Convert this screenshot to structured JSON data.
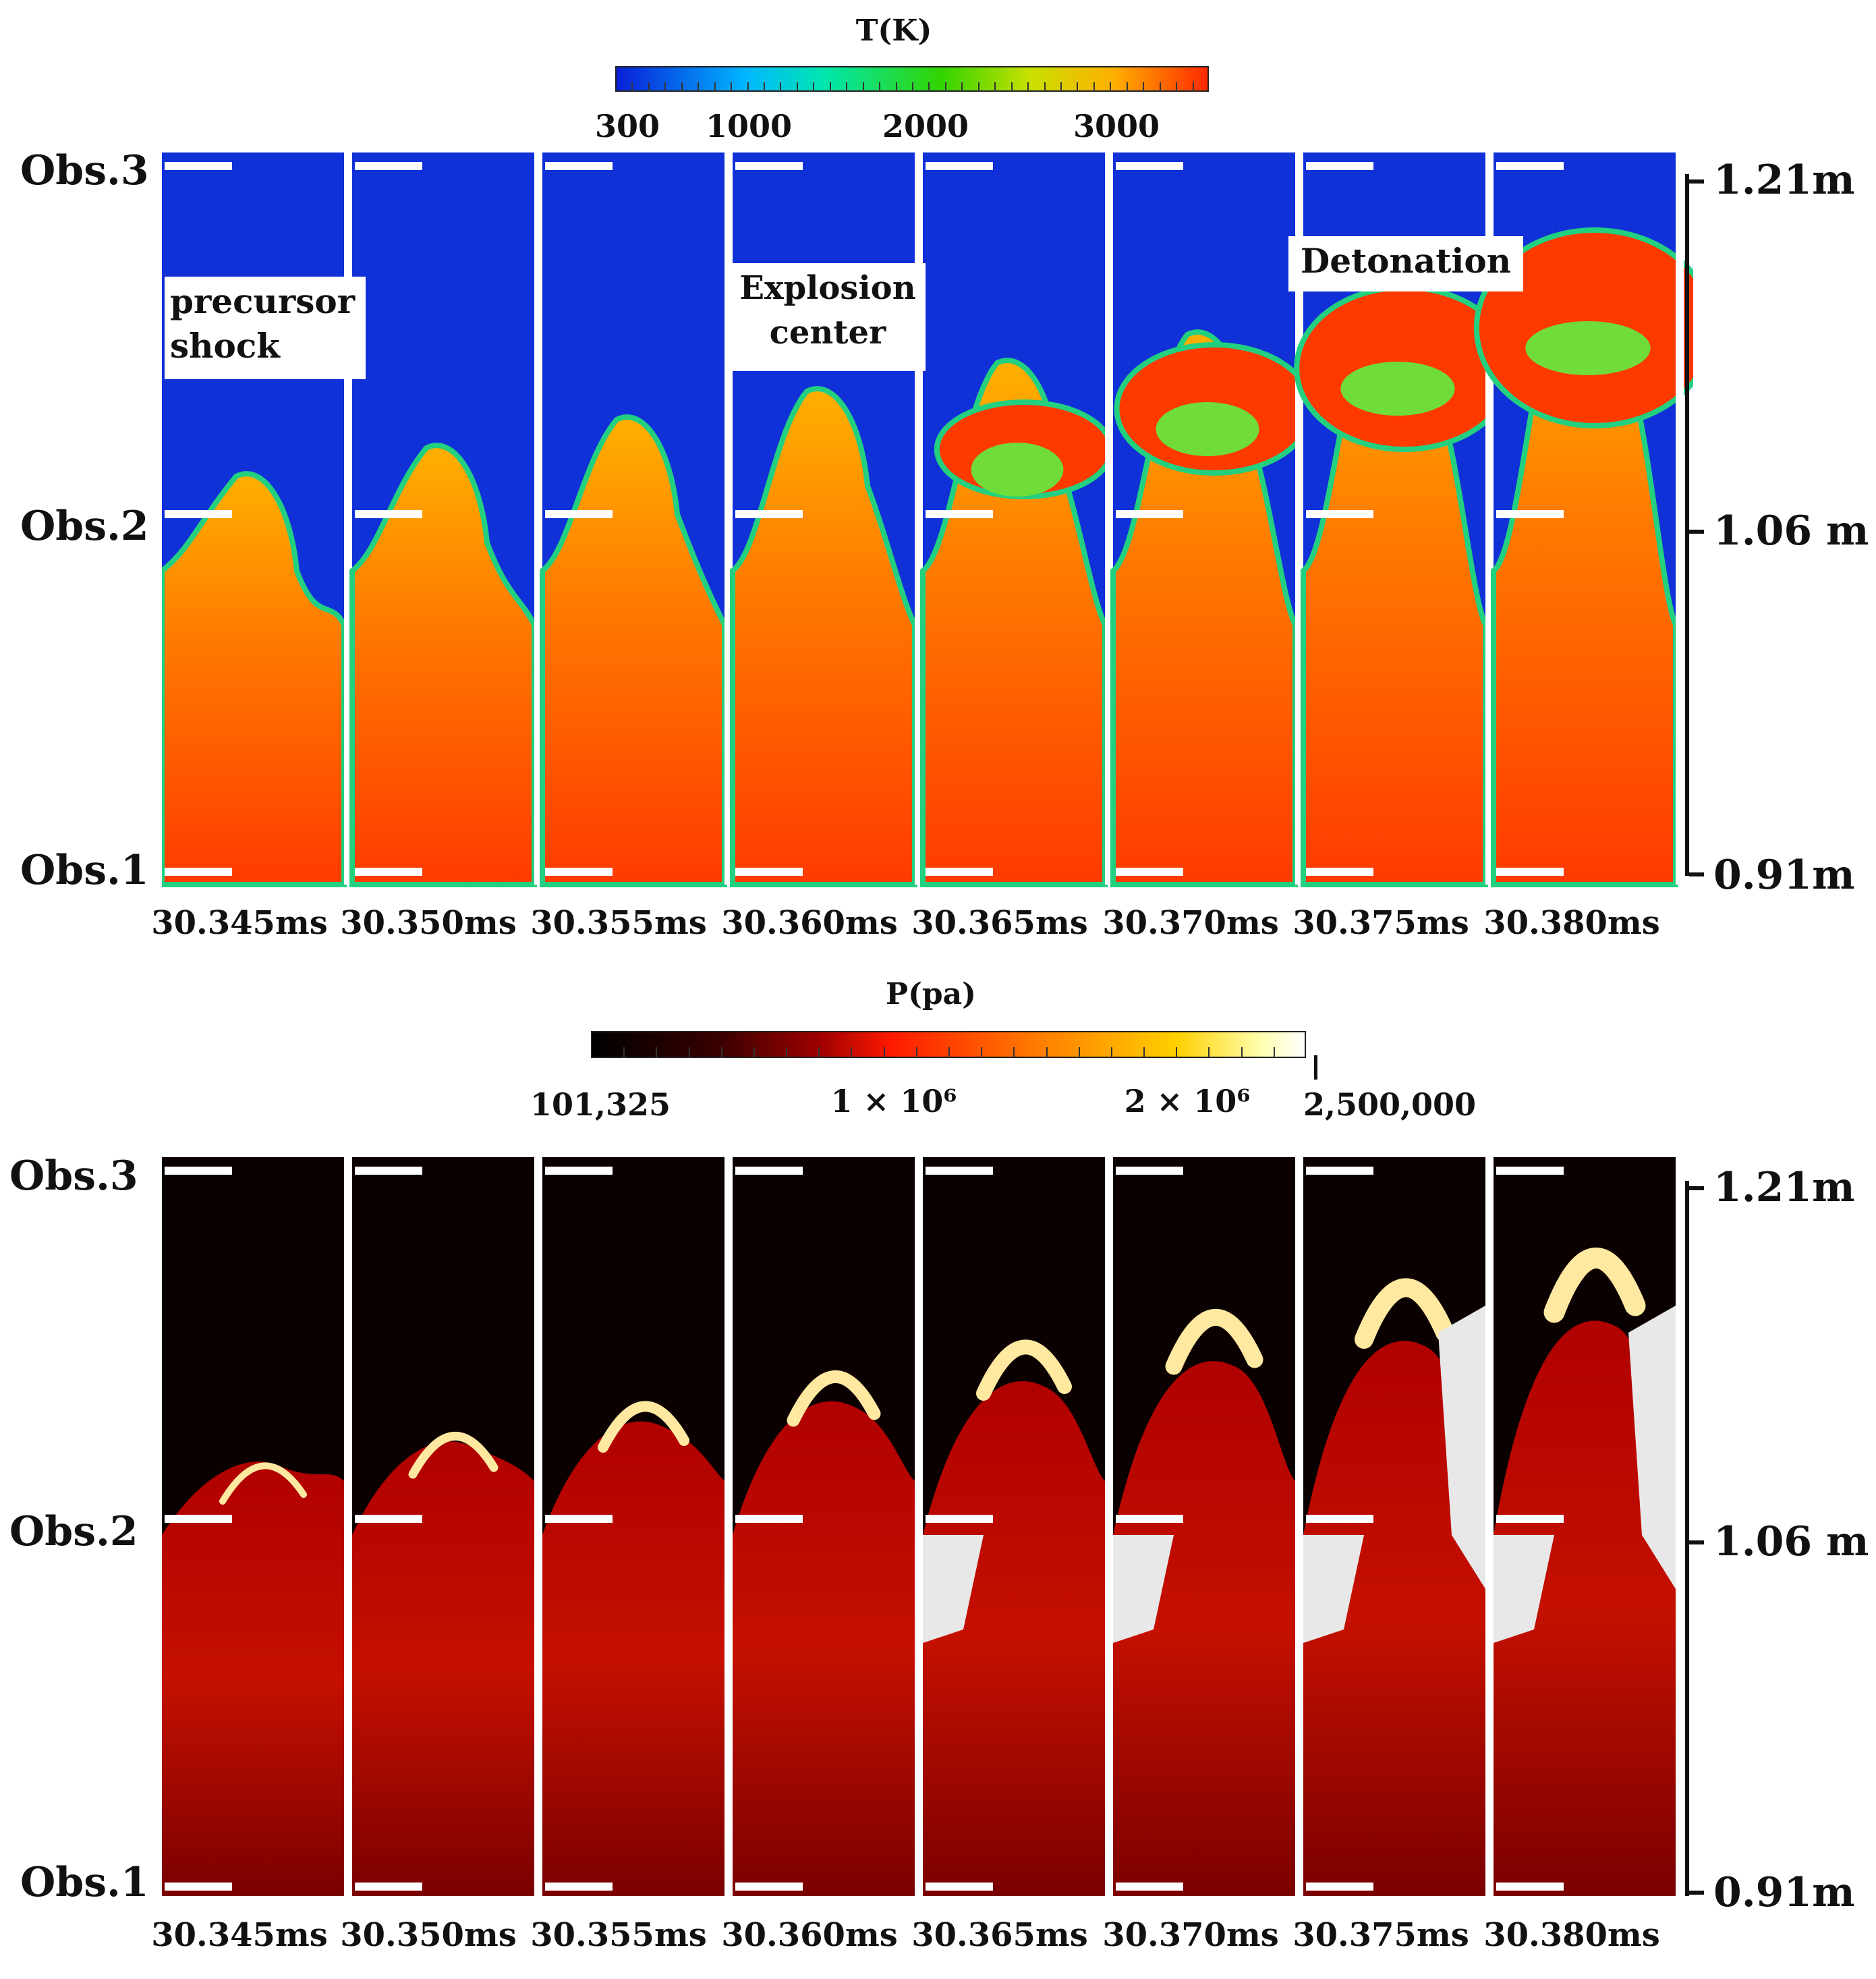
{
  "temperature_colorbar": {
    "title": "T(K)",
    "tick_labels": [
      "300",
      "1000",
      "2000",
      "3000"
    ],
    "gradient_colors": [
      "#0a1fd8",
      "#00b7ff",
      "#00e6b0",
      "#33d400",
      "#c8e000",
      "#ffb000",
      "#ff2a00"
    ]
  },
  "pressure_colorbar": {
    "title": "P(pa)",
    "tick_labels": [
      "101,325",
      "1 × 10⁶",
      "2 × 10⁶",
      "2,500,000"
    ],
    "gradient_colors": [
      "#000000",
      "#3a0000",
      "#a00000",
      "#ff1a00",
      "#ff7a00",
      "#ffd000",
      "#ffffb0",
      "#ffffff"
    ]
  },
  "top_panel": {
    "observation_labels": [
      "Obs.3",
      "Obs.2",
      "Obs.1"
    ],
    "distance_labels": [
      "1.21m",
      "1.06 m",
      "0.91m"
    ],
    "annotations": {
      "precursor": [
        "precursor",
        "shock"
      ],
      "explosion": [
        "Explosion",
        "center"
      ],
      "detonation": "Detonation"
    }
  },
  "bottom_panel": {
    "observation_labels": [
      "Obs.3",
      "Obs.2",
      "Obs.1"
    ],
    "distance_labels": [
      "1.21m",
      "1.06 m",
      "0.91m"
    ]
  },
  "time_labels": [
    "30.345ms",
    "30.350ms",
    "30.355ms",
    "30.360ms",
    "30.365ms",
    "30.370ms",
    "30.375ms",
    "30.380ms"
  ]
}
